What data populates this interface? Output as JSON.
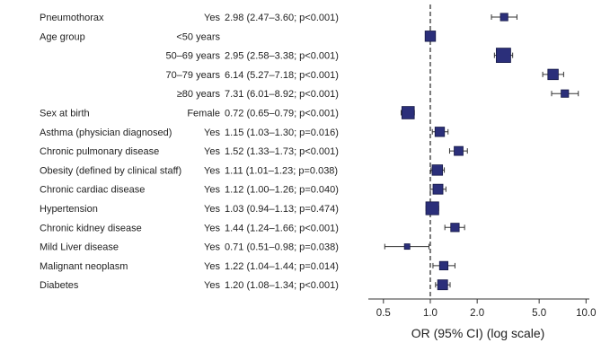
{
  "chart_data": {
    "type": "forest",
    "xlabel": "OR (95% CI) (log scale)",
    "xscale": "log",
    "xlim": [
      0.4,
      10.5
    ],
    "xticks": [
      0.5,
      1.0,
      2.0,
      5.0,
      10.0
    ],
    "xtick_labels": [
      "0.5",
      "1.0",
      "2.0",
      "5.0",
      "10.0"
    ],
    "reference_line": 1.0,
    "rows": [
      {
        "variable": "Pneumothorax",
        "level": "Yes",
        "or_text": "2.98 (2.47–3.60; p<0.001)",
        "or": 2.98,
        "lo": 2.47,
        "hi": 3.6,
        "weight": 0.3
      },
      {
        "variable": "Age group",
        "level": "<50 years",
        "or_text": "",
        "or": 1.0,
        "lo": 1.0,
        "hi": 1.0,
        "weight": 0.6
      },
      {
        "variable": "",
        "level": "50–69 years",
        "or_text": "2.95 (2.58–3.38; p<0.001)",
        "or": 2.95,
        "lo": 2.58,
        "hi": 3.38,
        "weight": 1.0
      },
      {
        "variable": "",
        "level": "70–79 years",
        "or_text": "6.14 (5.27–7.18; p<0.001)",
        "or": 6.14,
        "lo": 5.27,
        "hi": 7.18,
        "weight": 0.6
      },
      {
        "variable": "",
        "level": "≥80 years",
        "or_text": "7.31 (6.01–8.92; p<0.001)",
        "or": 7.31,
        "lo": 6.01,
        "hi": 8.92,
        "weight": 0.3
      },
      {
        "variable": "Sex at birth",
        "level": "Female",
        "or_text": "0.72 (0.65–0.79; p<0.001)",
        "or": 0.72,
        "lo": 0.65,
        "hi": 0.79,
        "weight": 0.8
      },
      {
        "variable": "Asthma (physician diagnosed)",
        "level": "Yes",
        "or_text": "1.15 (1.03–1.30; p=0.016)",
        "or": 1.15,
        "lo": 1.03,
        "hi": 1.3,
        "weight": 0.5
      },
      {
        "variable": "Chronic pulmonary disease",
        "level": "Yes",
        "or_text": "1.52 (1.33–1.73; p<0.001)",
        "or": 1.52,
        "lo": 1.33,
        "hi": 1.73,
        "weight": 0.45
      },
      {
        "variable": "Obesity (defined by clinical staff)",
        "level": "Yes",
        "or_text": "1.11 (1.01–1.23; p=0.038)",
        "or": 1.11,
        "lo": 1.01,
        "hi": 1.23,
        "weight": 0.6
      },
      {
        "variable": "Chronic cardiac disease",
        "level": "Yes",
        "or_text": "1.12 (1.00–1.26; p=0.040)",
        "or": 1.12,
        "lo": 1.0,
        "hi": 1.26,
        "weight": 0.55
      },
      {
        "variable": "Hypertension",
        "level": "Yes",
        "or_text": "1.03 (0.94–1.13; p=0.474)",
        "or": 1.03,
        "lo": 0.94,
        "hi": 1.13,
        "weight": 0.85
      },
      {
        "variable": "Chronic kidney disease",
        "level": "Yes",
        "or_text": "1.44 (1.24–1.66; p<0.001)",
        "or": 1.44,
        "lo": 1.24,
        "hi": 1.66,
        "weight": 0.4
      },
      {
        "variable": "Mild Liver disease",
        "level": "Yes",
        "or_text": "0.71 (0.51–0.98; p=0.038)",
        "or": 0.71,
        "lo": 0.51,
        "hi": 0.98,
        "weight": 0.1
      },
      {
        "variable": "Malignant neoplasm",
        "level": "Yes",
        "or_text": "1.22 (1.04–1.44; p=0.014)",
        "or": 1.22,
        "lo": 1.04,
        "hi": 1.44,
        "weight": 0.4
      },
      {
        "variable": "Diabetes",
        "level": "Yes",
        "or_text": "1.20 (1.08–1.34; p<0.001)",
        "or": 1.2,
        "lo": 1.08,
        "hi": 1.34,
        "weight": 0.55
      }
    ],
    "colors": {
      "marker": "#2b2f7a",
      "marker_edge": "#151845",
      "ci": "#333333",
      "refline": "#222222",
      "axis": "#333333"
    }
  }
}
